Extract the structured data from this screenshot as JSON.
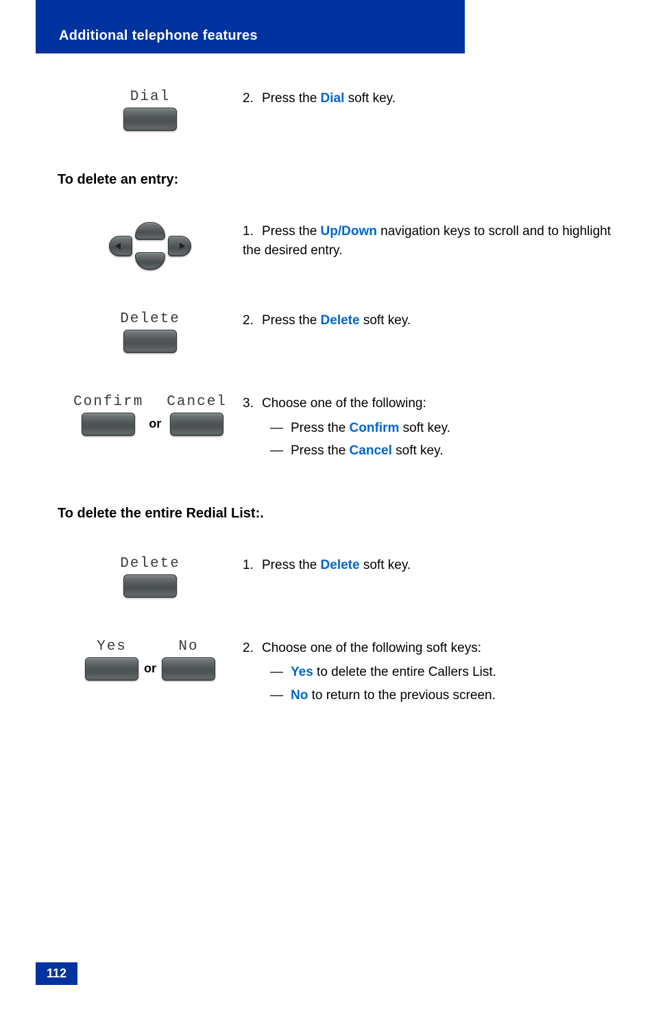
{
  "colors": {
    "accent_blue": "#0033a0",
    "link_blue": "#0066cc",
    "key_gradient_top": "#7a7f82",
    "key_gradient_mid": "#53585b",
    "key_gradient_bot": "#686d70",
    "key_border": "#2f3334",
    "background": "#ffffff"
  },
  "typography": {
    "body_font": "Arial",
    "body_size_pt": 14,
    "key_label_font": "Courier",
    "key_label_size_pt": 16
  },
  "header": {
    "title": "Additional telephone features"
  },
  "page_number": "112",
  "steps": {
    "dial": {
      "key_label": "Dial",
      "num": "2.",
      "text_prefix": "Press the ",
      "keyword": "Dial",
      "text_suffix": " soft key."
    },
    "section_delete_entry": "To delete an entry:",
    "nav": {
      "num": "1.",
      "text_prefix": "Press the ",
      "keyword": "Up/Down",
      "text_suffix": " navigation keys to scroll and to highlight the desired entry."
    },
    "delete1": {
      "key_label": "Delete",
      "num": "2.",
      "text_prefix": "Press the ",
      "keyword": "Delete",
      "text_suffix": " soft key."
    },
    "confirm_cancel": {
      "key_label_left": "Confirm",
      "key_label_right": "Cancel",
      "or": "or",
      "num": "3.",
      "lead": "Choose one of the following:",
      "sub1_prefix": "Press the ",
      "sub1_keyword": "Confirm",
      "sub1_suffix": " soft key.",
      "sub2_prefix": "Press the ",
      "sub2_keyword": "Cancel",
      "sub2_suffix": " soft key."
    },
    "section_delete_list": "To delete the entire Redial List:.",
    "delete2": {
      "key_label": "Delete",
      "num": "1.",
      "text_prefix": "Press the ",
      "keyword": "Delete",
      "text_suffix": " soft key."
    },
    "yes_no": {
      "key_label_left": "Yes",
      "key_label_right": "No",
      "or": "or",
      "num": "2.",
      "lead": "Choose one of the following soft keys:",
      "sub1_keyword": "Yes",
      "sub1_suffix": " to delete the entire Callers List.",
      "sub2_keyword": "No",
      "sub2_suffix": " to return to the previous screen."
    }
  }
}
